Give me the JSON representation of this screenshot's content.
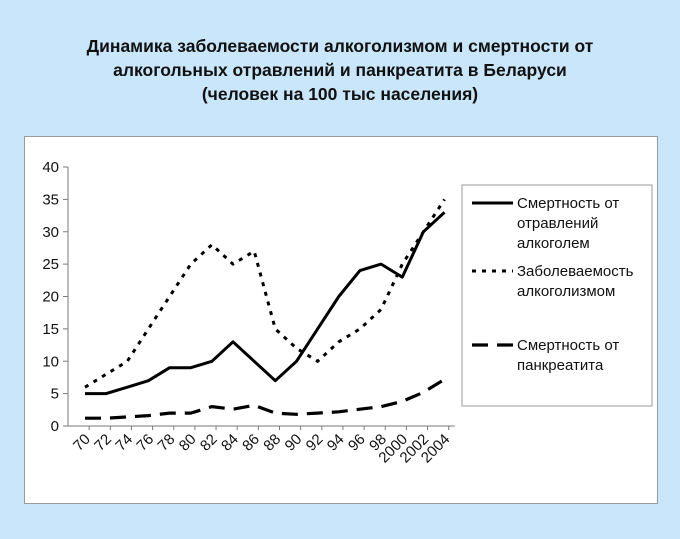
{
  "chart_data": {
    "type": "line",
    "title_lines": [
      "Динамика заболеваемости алкоголизмом и смертности от",
      "алкогольных отравлений и панкреатита в Беларуси",
      "(человек на 100 тыс населения)"
    ],
    "categories": [
      "70",
      "72",
      "74",
      "76",
      "78",
      "80",
      "82",
      "84",
      "86",
      "88",
      "90",
      "92",
      "94",
      "96",
      "98",
      "2000",
      "2002",
      "2004"
    ],
    "ylim": [
      0,
      40
    ],
    "yticks": [
      "0",
      "5",
      "10",
      "15",
      "20",
      "25",
      "30",
      "35",
      "40"
    ],
    "grid": false,
    "legend_position": "right",
    "series": [
      {
        "name_lines": [
          "Смертность от",
          "отравлений",
          "алкоголем"
        ],
        "style": "solid",
        "values": [
          5,
          5,
          6,
          7,
          9,
          9,
          10,
          13,
          10,
          7,
          10,
          15,
          20,
          24,
          25,
          23,
          30,
          33
        ]
      },
      {
        "name_lines": [
          "Заболеваемость",
          "алкоголизмом"
        ],
        "style": "dotted",
        "values": [
          6,
          8,
          10,
          15,
          20,
          25,
          28,
          25,
          27,
          15,
          12,
          10,
          13,
          15,
          18,
          25,
          30,
          35
        ]
      },
      {
        "name_lines": [
          "Смертность от",
          "панкреатита"
        ],
        "style": "dashed",
        "values": [
          1.2,
          1.2,
          1.4,
          1.6,
          2,
          2,
          3,
          2.6,
          3.2,
          2,
          1.8,
          2,
          2.2,
          2.6,
          3,
          3.8,
          5.2,
          7.2
        ]
      }
    ]
  }
}
